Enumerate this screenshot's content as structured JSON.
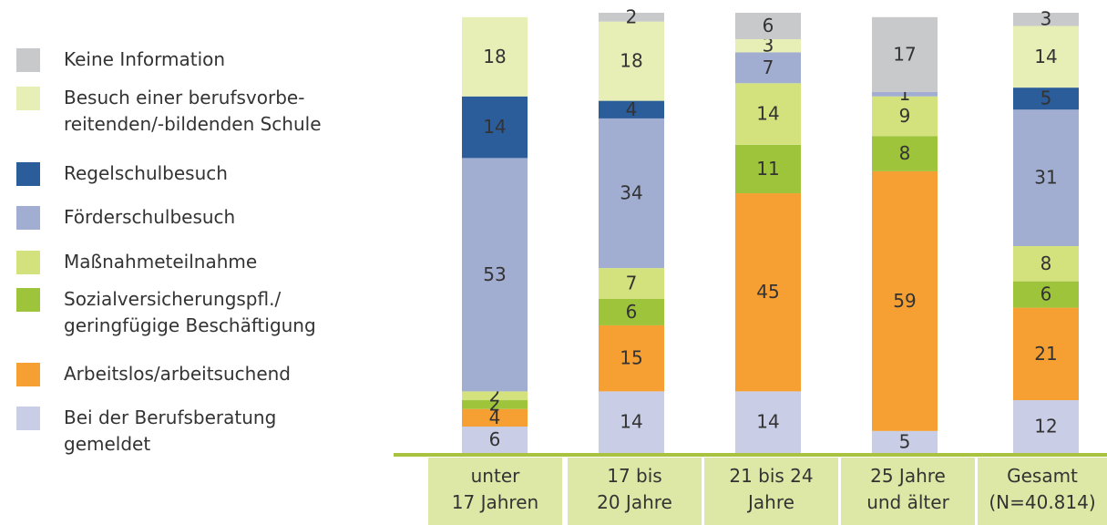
{
  "chart_data": {
    "type": "stacked_bar",
    "categories": [
      "unter\n17 Jahren",
      "17 bis\n20 Jahre",
      "21 bis  24\nJahre",
      "25 Jahre\nund älter",
      "Gesamt\n(N=40.814)"
    ],
    "ylim": [
      0,
      100
    ],
    "series": [
      {
        "name": "Bei der Berufsberatung\ngemeldet",
        "color": "#c9cde6",
        "values": [
          6,
          14,
          14,
          5,
          12
        ]
      },
      {
        "name": "Arbeitslos/arbeitsuchend",
        "color": "#f6a034",
        "values": [
          4,
          15,
          45,
          59,
          21
        ]
      },
      {
        "name": "Sozialversicherungspfl./\ngeringfügige Beschäftigung",
        "color": "#9dc43a",
        "values": [
          2,
          6,
          11,
          8,
          6
        ]
      },
      {
        "name": "Maßnahmeteilnahme",
        "color": "#d3e27c",
        "values": [
          2,
          7,
          14,
          9,
          8
        ]
      },
      {
        "name": "Förderschulbesuch",
        "color": "#a2aed1",
        "values": [
          53,
          34,
          7,
          1,
          31
        ]
      },
      {
        "name": "Regelschulbesuch",
        "color": "#2b5d9b",
        "values": [
          14,
          4,
          null,
          null,
          5
        ]
      },
      {
        "name": "Besuch einer berufsvorbe-\nreitenden/-bildenden Schule",
        "color": "#e7efb6",
        "values": [
          18,
          18,
          3,
          null,
          14
        ]
      },
      {
        "name": "Keine Information",
        "color": "#c8c9cb",
        "values": [
          null,
          2,
          6,
          17,
          3
        ]
      }
    ]
  }
}
